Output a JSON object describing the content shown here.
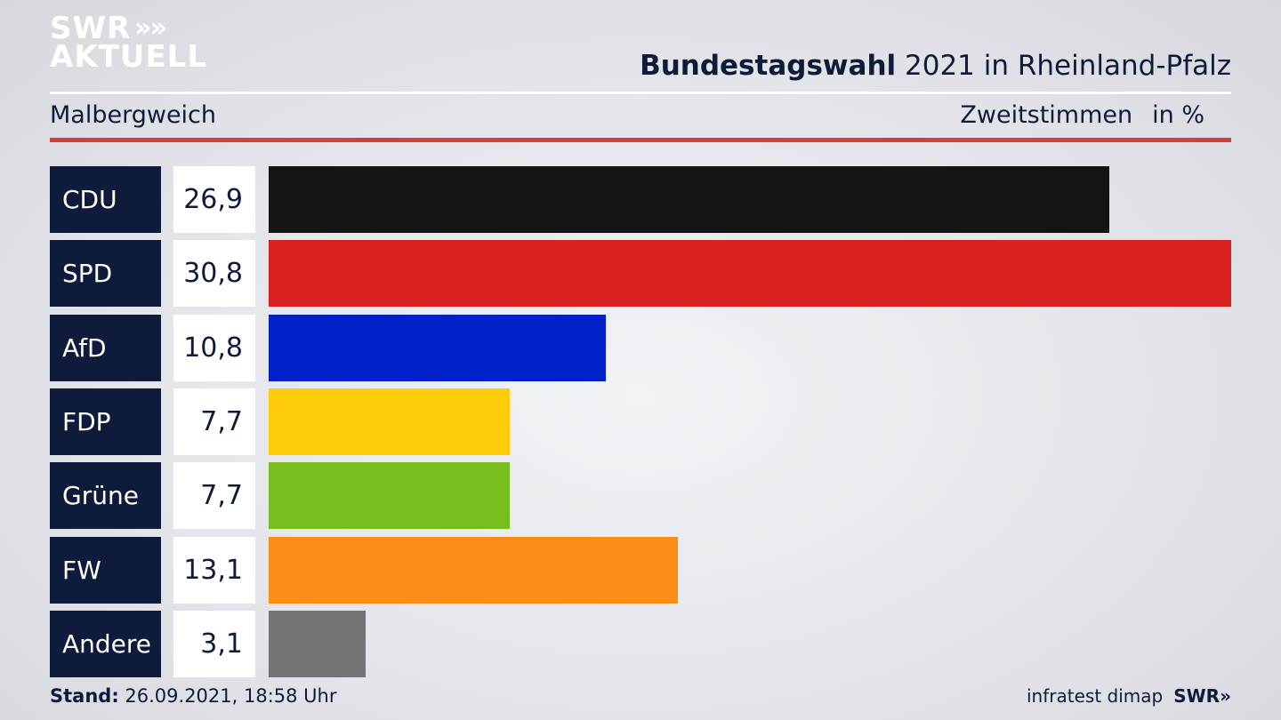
{
  "logo": {
    "line1": "SWR",
    "line2": "AKTUELL",
    "chevrons": "»"
  },
  "header": {
    "title_bold": "Bundestagswahl",
    "title_rest": " 2021 in Rheinland-Pfalz",
    "region": "Malbergweich",
    "metric": "Zweitstimmen",
    "unit": "in %"
  },
  "chart_data": {
    "type": "bar",
    "orientation": "horizontal",
    "categories": [
      "CDU",
      "SPD",
      "AfD",
      "FDP",
      "Grüne",
      "FW",
      "Andere"
    ],
    "values": [
      26.9,
      30.8,
      10.8,
      7.7,
      7.7,
      13.1,
      3.1
    ],
    "value_labels": [
      "26,9",
      "30,8",
      "10,8",
      "7,7",
      "7,7",
      "13,1",
      "3,1"
    ],
    "colors": [
      "#141414",
      "#d82020",
      "#0321c8",
      "#ffcc0a",
      "#76bd1d",
      "#fe8d18",
      "#747474"
    ],
    "xlim": [
      0,
      30.8
    ],
    "grid": false,
    "legend": "none"
  },
  "footer": {
    "stand_label": "Stand:",
    "stand_value": " 26.09.2021, 18:58 Uhr",
    "source": "infratest dimap",
    "brand": "SWR»"
  }
}
